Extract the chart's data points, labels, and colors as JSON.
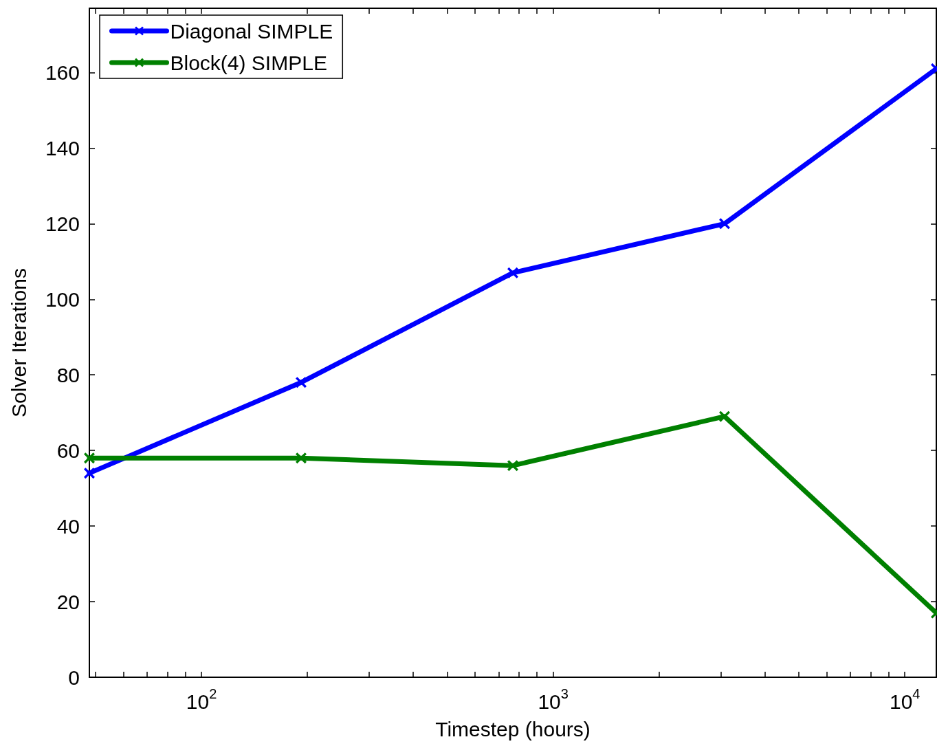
{
  "chart_data": {
    "type": "line",
    "xlabel": "Timestep (hours)",
    "ylabel": "Solver Iterations",
    "x": [
      48,
      192,
      768,
      3072,
      12288
    ],
    "series": [
      {
        "name": "Diagonal SIMPLE",
        "color": "#0000ff",
        "values": [
          54,
          78,
          107,
          120,
          161
        ]
      },
      {
        "name": "Block(4) SIMPLE",
        "color": "#008000",
        "values": [
          58,
          58,
          56,
          69,
          17
        ]
      }
    ],
    "log": "x",
    "xlim": [
      48,
      12288
    ],
    "xticks": [
      {
        "value": 50,
        "label": null
      },
      {
        "value": 60,
        "label": null
      },
      {
        "value": 70,
        "label": null
      },
      {
        "value": 80,
        "label": null
      },
      {
        "value": 90,
        "label": null
      },
      {
        "value": 100,
        "label": "10$^{2}$"
      },
      {
        "value": 200,
        "label": null
      },
      {
        "value": 300,
        "label": null
      },
      {
        "value": 400,
        "label": null
      },
      {
        "value": 500,
        "label": null
      },
      {
        "value": 600,
        "label": null
      },
      {
        "value": 700,
        "label": null
      },
      {
        "value": 800,
        "label": null
      },
      {
        "value": 900,
        "label": null
      },
      {
        "value": 1000,
        "label": "10$^{3}$"
      },
      {
        "value": 2000,
        "label": null
      },
      {
        "value": 3000,
        "label": null
      },
      {
        "value": 4000,
        "label": null
      },
      {
        "value": 5000,
        "label": null
      },
      {
        "value": 6000,
        "label": null
      },
      {
        "value": 7000,
        "label": null
      },
      {
        "value": 8000,
        "label": null
      },
      {
        "value": 9000,
        "label": null
      },
      {
        "value": 10000,
        "label": "10$^{4}$"
      }
    ],
    "ylim": [
      0,
      177
    ],
    "yticks": [
      0,
      20,
      40,
      60,
      80,
      100,
      120,
      140,
      160
    ],
    "grid": false,
    "legend": "top left",
    "marker": "cross",
    "line_style": "solid"
  }
}
